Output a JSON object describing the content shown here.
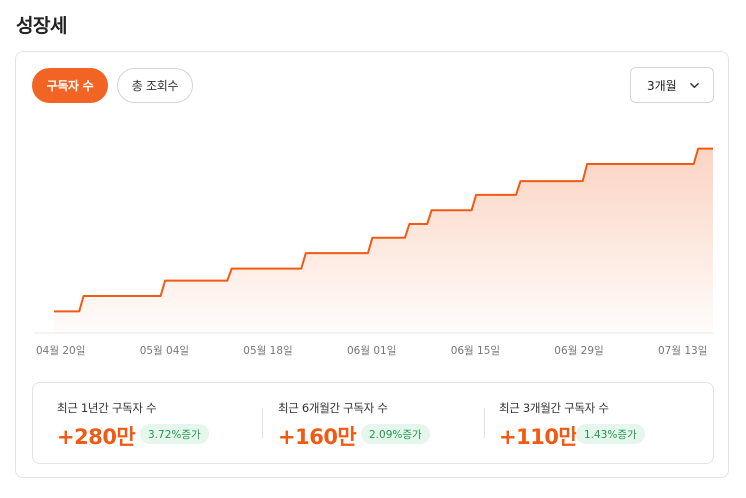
{
  "page": {
    "title": "성장세"
  },
  "tabs": [
    {
      "label": "구독자 수",
      "active": true
    },
    {
      "label": "총 조회수",
      "active": false
    }
  ],
  "period_select": {
    "selected": "3개월",
    "icon": "chevron-down-icon"
  },
  "colors": {
    "accent": "#f26424",
    "line": "#f05a14",
    "badge_bg": "#e6f6ec",
    "badge_text": "#1f9a50"
  },
  "chart_data": {
    "type": "area",
    "step": true,
    "x_tick_labels": [
      "04월 20일",
      "05월 04일",
      "05월 18일",
      "06월 01일",
      "06월 15일",
      "06월 29일",
      "07월 13일"
    ],
    "x": [
      "04-20",
      "04-21",
      "04-22",
      "04-23",
      "04-24",
      "04-25",
      "04-26",
      "04-27",
      "04-28",
      "04-29",
      "04-30",
      "05-01",
      "05-02",
      "05-03",
      "05-04",
      "05-05",
      "05-06",
      "05-07",
      "05-08",
      "05-09",
      "05-10",
      "05-11",
      "05-12",
      "05-13",
      "05-14",
      "05-15",
      "05-16",
      "05-17",
      "05-18",
      "05-19",
      "05-20",
      "05-21",
      "05-22",
      "05-23",
      "05-24",
      "05-25",
      "05-26",
      "05-27",
      "05-28",
      "05-29",
      "05-30",
      "05-31",
      "06-01",
      "06-02",
      "06-03",
      "06-04",
      "06-05",
      "06-06",
      "06-07",
      "06-08",
      "06-09",
      "06-10",
      "06-11",
      "06-12",
      "06-13",
      "06-14",
      "06-15",
      "06-16",
      "06-17",
      "06-18",
      "06-19",
      "06-20",
      "06-21",
      "06-22",
      "06-23",
      "06-24",
      "06-25",
      "06-26",
      "06-27",
      "06-28",
      "06-29",
      "06-30",
      "07-01",
      "07-02",
      "07-03",
      "07-04",
      "07-05",
      "07-06",
      "07-07",
      "07-08",
      "07-09",
      "07-10",
      "07-11",
      "07-12",
      "07-13",
      "07-14",
      "07-15",
      "07-16",
      "07-17",
      "07-18"
    ],
    "y_steps": [
      {
        "from": "04-20",
        "value": 0
      },
      {
        "from": "04-24",
        "value": 9
      },
      {
        "from": "05-05",
        "value": 18
      },
      {
        "from": "05-14",
        "value": 25
      },
      {
        "from": "05-24",
        "value": 34
      },
      {
        "from": "06-02",
        "value": 43
      },
      {
        "from": "06-07",
        "value": 51
      },
      {
        "from": "06-10",
        "value": 59
      },
      {
        "from": "06-16",
        "value": 68
      },
      {
        "from": "06-22",
        "value": 76
      },
      {
        "from": "07-01",
        "value": 86
      },
      {
        "from": "07-16",
        "value": 95
      }
    ],
    "ylim": [
      -5,
      100
    ],
    "grid": false,
    "legend": "none"
  },
  "stats": [
    {
      "label": "최근 1년간 구독자 수",
      "value": "+280만",
      "badge": "3.72%증가"
    },
    {
      "label": "최근 6개월간 구독자 수",
      "value": "+160만",
      "badge": "2.09%증가"
    },
    {
      "label": "최근 3개월간 구독자 수",
      "value": "+110만",
      "badge": "1.43%증가"
    }
  ]
}
